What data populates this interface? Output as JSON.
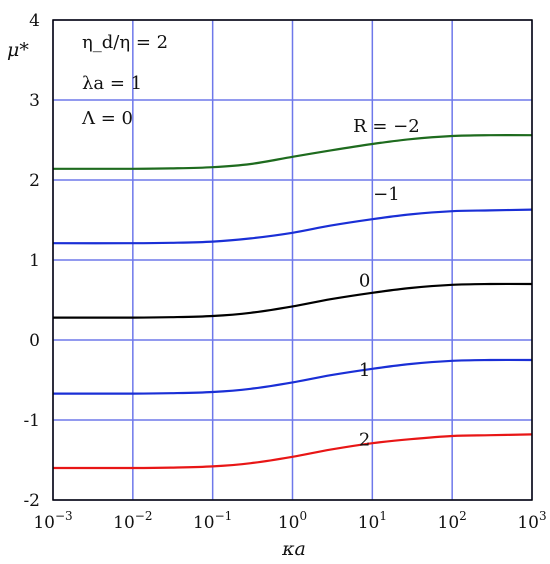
{
  "chart_data": {
    "type": "line",
    "xscale": "log",
    "xlim": [
      0.001,
      1000
    ],
    "ylim": [
      -2,
      4
    ],
    "xlabel": "κa",
    "ylabel": "μ*",
    "grid": true,
    "x_ticks": [
      {
        "value": 0.001,
        "base": "10",
        "exp": "−3"
      },
      {
        "value": 0.01,
        "base": "10",
        "exp": "−2"
      },
      {
        "value": 0.1,
        "base": "10",
        "exp": "−1"
      },
      {
        "value": 1,
        "base": "10",
        "exp": "0"
      },
      {
        "value": 10,
        "base": "10",
        "exp": "1"
      },
      {
        "value": 100,
        "base": "10",
        "exp": "2"
      },
      {
        "value": 1000,
        "base": "10",
        "exp": "3"
      }
    ],
    "y_ticks": [
      {
        "value": -2,
        "label": "-2"
      },
      {
        "value": -1,
        "label": "-1"
      },
      {
        "value": 0,
        "label": "0"
      },
      {
        "value": 1,
        "label": "1"
      },
      {
        "value": 2,
        "label": "2"
      },
      {
        "value": 3,
        "label": "3"
      },
      {
        "value": 4,
        "label": "4"
      }
    ],
    "annotations": [
      "η_d/η = 2",
      "λa = 1",
      "Λ = 0"
    ],
    "x": [
      0.001,
      0.01,
      0.03,
      0.1,
      0.3,
      1,
      3,
      10,
      30,
      100,
      300,
      1000
    ],
    "series": [
      {
        "label": "R = −2",
        "label_x": 15,
        "label_y": 2.6,
        "color": "#1e6b1e",
        "values": [
          2.14,
          2.14,
          2.145,
          2.16,
          2.2,
          2.29,
          2.37,
          2.45,
          2.51,
          2.55,
          2.56,
          2.56
        ]
      },
      {
        "label": "−1",
        "label_x": 15,
        "label_y": 1.75,
        "color": "#1a2fd6",
        "values": [
          1.21,
          1.21,
          1.215,
          1.23,
          1.27,
          1.34,
          1.43,
          1.51,
          1.57,
          1.61,
          1.62,
          1.63
        ]
      },
      {
        "label": "0",
        "label_x": 8,
        "label_y": 0.67,
        "color": "#000000",
        "values": [
          0.28,
          0.28,
          0.285,
          0.3,
          0.34,
          0.42,
          0.51,
          0.59,
          0.65,
          0.69,
          0.7,
          0.7
        ]
      },
      {
        "label": "1",
        "label_x": 8,
        "label_y": -0.45,
        "color": "#1a2fd6",
        "values": [
          -0.67,
          -0.67,
          -0.665,
          -0.65,
          -0.61,
          -0.53,
          -0.44,
          -0.36,
          -0.3,
          -0.26,
          -0.25,
          -0.25
        ]
      },
      {
        "label": "2",
        "label_x": 8,
        "label_y": -1.32,
        "color": "#e81616",
        "values": [
          -1.6,
          -1.6,
          -1.595,
          -1.58,
          -1.54,
          -1.46,
          -1.37,
          -1.29,
          -1.24,
          -1.2,
          -1.19,
          -1.18
        ]
      }
    ]
  }
}
